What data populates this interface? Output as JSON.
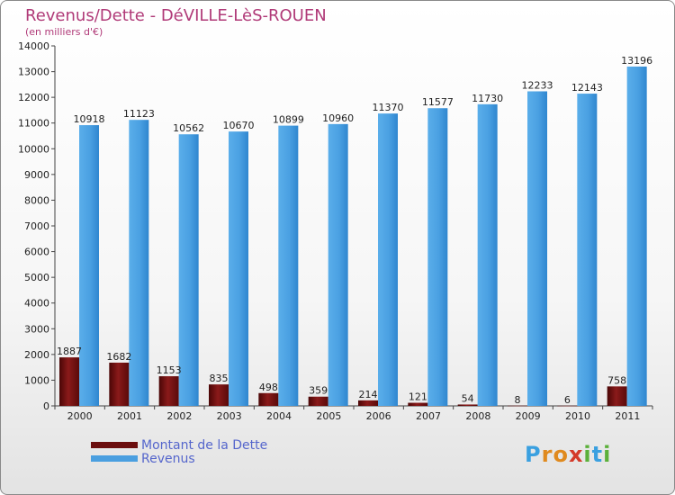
{
  "header": {
    "title": "Revenus/Dette - DéVILLE-LèS-ROUEN",
    "subtitle": "(en milliers d'€)"
  },
  "legend": {
    "items": [
      {
        "label": "Montant de la Dette",
        "color": "#6b0d0d"
      },
      {
        "label": "Revenus",
        "color": "#4a9fe0"
      }
    ]
  },
  "logo": {
    "text": "Proxiti",
    "letters": [
      {
        "ch": "P",
        "color": "#3aa0e0"
      },
      {
        "ch": "r",
        "color": "#e08a1e"
      },
      {
        "ch": "o",
        "color": "#e08a1e"
      },
      {
        "ch": "x",
        "color": "#d43a2a"
      },
      {
        "ch": "i",
        "color": "#5bb03a"
      },
      {
        "ch": "t",
        "color": "#3aa0e0"
      },
      {
        "ch": "i",
        "color": "#5bb03a"
      }
    ]
  },
  "chart_data": {
    "type": "bar",
    "title": "Revenus/Dette - DéVILLE-LèS-ROUEN",
    "subtitle": "(en milliers d'€)",
    "categories": [
      "2000",
      "2001",
      "2002",
      "2003",
      "2004",
      "2005",
      "2006",
      "2007",
      "2008",
      "2009",
      "2010",
      "2011"
    ],
    "series": [
      {
        "name": "Montant de la Dette",
        "color": "#6b0d0d",
        "values": [
          1887,
          1682,
          1153,
          835,
          498,
          359,
          214,
          121,
          54,
          8,
          6,
          758
        ],
        "labels": [
          "1887",
          "1682",
          "1153",
          "835",
          "498",
          "359",
          "214",
          "121",
          "54",
          "8",
          "6",
          "758"
        ]
      },
      {
        "name": "Revenus",
        "color": "#4a9fe0",
        "values": [
          10918,
          11123,
          10562,
          10670,
          10899,
          10960,
          11370,
          11577,
          11730,
          12233,
          12143,
          13196
        ],
        "labels": [
          "10918",
          "11123",
          "10562",
          "10670",
          "10899",
          "10960",
          "11370",
          "11577",
          "11730",
          "12233",
          "12143",
          "13196"
        ]
      }
    ],
    "ylim": [
      0,
      14000
    ],
    "yticks": [
      0,
      1000,
      2000,
      3000,
      4000,
      5000,
      6000,
      7000,
      8000,
      9000,
      10000,
      11000,
      12000,
      13000,
      14000
    ],
    "ytick_labels": [
      "0",
      "1000",
      "2000",
      "3000",
      "4000",
      "5000",
      "6000",
      "7000",
      "8000",
      "9000",
      "10000",
      "11000",
      "12000",
      "13000",
      "14000"
    ],
    "xlabel": "",
    "ylabel": "",
    "grid": false,
    "legend_position": "bottom-left"
  }
}
